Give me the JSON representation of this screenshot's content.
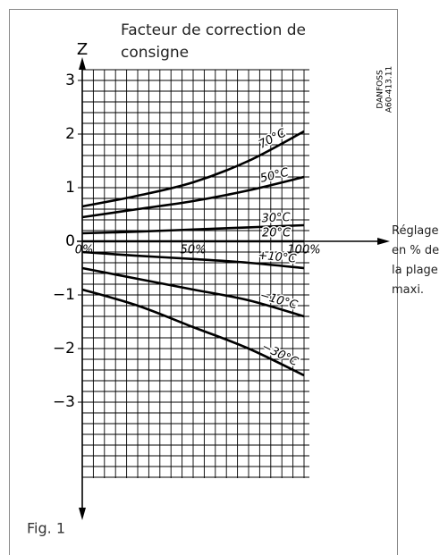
{
  "chart_data": {
    "type": "line",
    "title": "Facteur de correction de consigne",
    "ylabel": "Z",
    "xlabel": "Réglage en % de la plage maxi.",
    "code": [
      "DANFOSS",
      "A60-413.11"
    ],
    "caption": "Fig. 1",
    "x": [
      0,
      25,
      50,
      75,
      100
    ],
    "xlim": [
      0,
      100
    ],
    "xticks": [
      {
        "value": 0,
        "label": "0%"
      },
      {
        "value": 50,
        "label": "50%"
      },
      {
        "value": 100,
        "label": "100%"
      }
    ],
    "ylim": [
      -4.5,
      3.2
    ],
    "yticks": [
      {
        "value": -3,
        "label": "−3"
      },
      {
        "value": -2,
        "label": "−2"
      },
      {
        "value": -1,
        "label": "−1"
      },
      0,
      1,
      2,
      3
    ],
    "grid": true,
    "series": [
      {
        "name": "70°C",
        "color": "#000000",
        "values": [
          0.65,
          0.85,
          1.1,
          1.5,
          2.05
        ]
      },
      {
        "name": "50°C",
        "color": "#000000",
        "values": [
          0.45,
          0.6,
          0.75,
          0.95,
          1.2
        ]
      },
      {
        "name": "30°C",
        "color": "#000000",
        "values": [
          0.15,
          0.18,
          0.22,
          0.26,
          0.3
        ]
      },
      {
        "name": "20°C",
        "color": "#000000",
        "values": [
          0,
          0,
          0,
          0,
          0
        ]
      },
      {
        "name": "+10°C",
        "color": "#000000",
        "values": [
          -0.2,
          -0.27,
          -0.33,
          -0.4,
          -0.5
        ]
      },
      {
        "name": "−10°C",
        "color": "#000000",
        "values": [
          -0.5,
          -0.7,
          -0.9,
          -1.1,
          -1.4
        ]
      },
      {
        "name": "−30°C",
        "color": "#000000",
        "values": [
          -0.9,
          -1.2,
          -1.6,
          -2.0,
          -2.5
        ]
      }
    ]
  }
}
